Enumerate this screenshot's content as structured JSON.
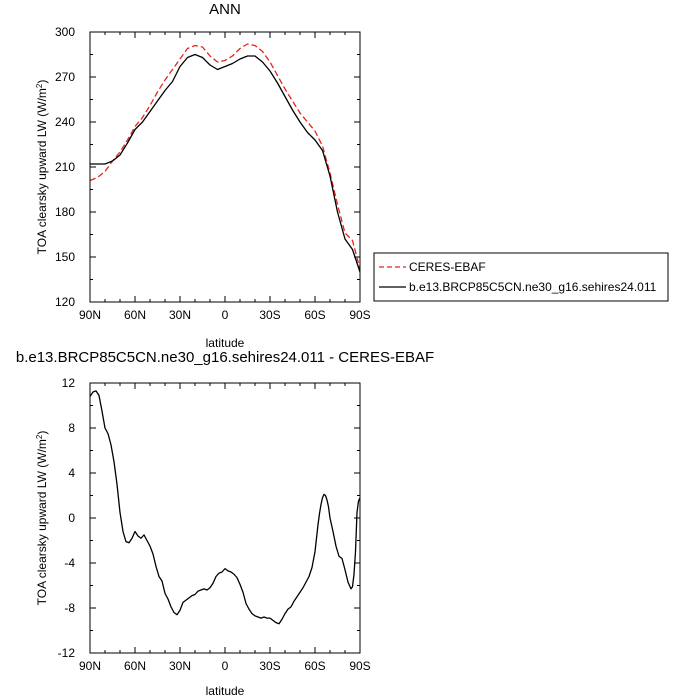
{
  "chart_data": [
    {
      "type": "line",
      "title": "ANN",
      "xlabel": "latitude",
      "ylabel": "TOA clearsky upward LW (W/m",
      "ylabel_sup": "2",
      "ylabel_end": ")",
      "xlim": [
        90,
        -90
      ],
      "ylim": [
        120,
        300
      ],
      "xticks": [
        90,
        60,
        30,
        0,
        -30,
        -60,
        -90
      ],
      "xticklabels": [
        "90N",
        "60N",
        "30N",
        "0",
        "30S",
        "60S",
        "90S"
      ],
      "yticks": [
        120,
        150,
        180,
        210,
        240,
        270,
        300
      ],
      "yticklabels": [
        "120",
        "150",
        "180",
        "210",
        "240",
        "270",
        "300"
      ],
      "legend_placement": "right",
      "series": [
        {
          "name": "CERES-EBAF",
          "color": "#e8231f",
          "dash": "dashed",
          "x": [
            90,
            85,
            80,
            75,
            70,
            65,
            60,
            55,
            50,
            45,
            40,
            35,
            30,
            25,
            20,
            15,
            10,
            5,
            0,
            -5,
            -10,
            -15,
            -20,
            -25,
            -30,
            -35,
            -40,
            -45,
            -50,
            -55,
            -60,
            -65,
            -70,
            -75,
            -80,
            -85,
            -90
          ],
          "y": [
            201,
            203,
            207,
            214,
            220,
            228,
            237,
            243,
            251,
            260,
            268,
            275,
            282,
            289,
            291,
            290,
            284,
            280,
            281,
            284,
            289,
            292,
            291,
            287,
            280,
            271,
            262,
            254,
            246,
            240,
            234,
            224,
            206,
            185,
            166,
            161,
            142
          ]
        },
        {
          "name": "b.e13.BRCP85C5CN.ne30_g16.sehires24.011",
          "color": "#000000",
          "dash": "solid",
          "x": [
            90,
            85,
            80,
            75,
            70,
            65,
            60,
            55,
            50,
            45,
            40,
            35,
            30,
            25,
            20,
            15,
            10,
            5,
            0,
            -5,
            -10,
            -15,
            -20,
            -25,
            -30,
            -35,
            -40,
            -45,
            -50,
            -55,
            -60,
            -65,
            -70,
            -75,
            -80,
            -85,
            -90
          ],
          "y": [
            212,
            212,
            212,
            214,
            218,
            226,
            235,
            240,
            247,
            254,
            261,
            267,
            277,
            283,
            285,
            283,
            278,
            275,
            277,
            279,
            282,
            284,
            284,
            280,
            274,
            266,
            257,
            248,
            240,
            233,
            228,
            221,
            204,
            180,
            162,
            155,
            140
          ]
        }
      ]
    },
    {
      "type": "line",
      "title": "b.e13.BRCP85C5CN.ne30_g16.sehires24.011 - CERES-EBAF",
      "xlabel": "latitude",
      "ylabel": "TOA clearsky upward LW (W/m",
      "ylabel_sup": "2",
      "ylabel_end": ")",
      "xlim": [
        90,
        -90
      ],
      "ylim": [
        -12,
        12
      ],
      "xticks": [
        90,
        60,
        30,
        0,
        -30,
        -60,
        -90
      ],
      "xticklabels": [
        "90N",
        "60N",
        "30N",
        "0",
        "30S",
        "60S",
        "90S"
      ],
      "yticks": [
        -12,
        -8,
        -4,
        0,
        4,
        8,
        12
      ],
      "yticklabels": [
        "-12",
        "-8",
        "-4",
        "0",
        "4",
        "8",
        "12"
      ],
      "series": [
        {
          "color": "#000000",
          "dash": "solid",
          "x": [
            90,
            88,
            86,
            84,
            82,
            80,
            78,
            76,
            74,
            72,
            70,
            68,
            66,
            64,
            62,
            60,
            58,
            56,
            54,
            52,
            50,
            48,
            46,
            44,
            42,
            40,
            38,
            36,
            34,
            32,
            30,
            28,
            26,
            24,
            22,
            20,
            18,
            16,
            14,
            12,
            10,
            8,
            6,
            4,
            2,
            0,
            -2,
            -4,
            -6,
            -8,
            -10,
            -12,
            -14,
            -16,
            -18,
            -20,
            -22,
            -24,
            -26,
            -28,
            -30,
            -32,
            -34,
            -36,
            -38,
            -40,
            -42,
            -44,
            -46,
            -48,
            -50,
            -52,
            -54,
            -56,
            -58,
            -60,
            -61,
            -62,
            -63,
            -64,
            -65,
            -66,
            -67,
            -68,
            -69,
            -70,
            -72,
            -74,
            -76,
            -78,
            -80,
            -82,
            -84,
            -85,
            -86,
            -87,
            -88,
            -89,
            -90
          ],
          "y": [
            10.8,
            11.2,
            11.3,
            10.9,
            9.5,
            8.0,
            7.5,
            6.5,
            5.0,
            3.0,
            0.5,
            -1.2,
            -2.1,
            -2.2,
            -1.8,
            -1.2,
            -1.6,
            -1.8,
            -1.5,
            -2.0,
            -2.5,
            -3.2,
            -4.3,
            -5.2,
            -5.6,
            -6.7,
            -7.2,
            -7.9,
            -8.4,
            -8.6,
            -8.2,
            -7.5,
            -7.3,
            -7.1,
            -6.9,
            -6.8,
            -6.5,
            -6.4,
            -6.3,
            -6.4,
            -6.2,
            -5.8,
            -5.2,
            -4.9,
            -4.8,
            -4.5,
            -4.7,
            -4.8,
            -5.0,
            -5.3,
            -5.9,
            -6.6,
            -7.6,
            -8.1,
            -8.5,
            -8.7,
            -8.8,
            -8.9,
            -8.8,
            -8.9,
            -8.9,
            -9.1,
            -9.3,
            -9.4,
            -9.0,
            -8.5,
            -8.1,
            -7.9,
            -7.4,
            -7.0,
            -6.6,
            -6.2,
            -5.7,
            -5.2,
            -4.4,
            -3.0,
            -1.8,
            -0.6,
            0.4,
            1.2,
            1.8,
            2.1,
            2.0,
            1.6,
            1.0,
            0.0,
            -1.2,
            -2.5,
            -3.4,
            -3.6,
            -4.6,
            -5.7,
            -6.3,
            -6.1,
            -5.0,
            -3.0,
            0.5,
            1.5,
            1.8
          ]
        }
      ]
    }
  ]
}
